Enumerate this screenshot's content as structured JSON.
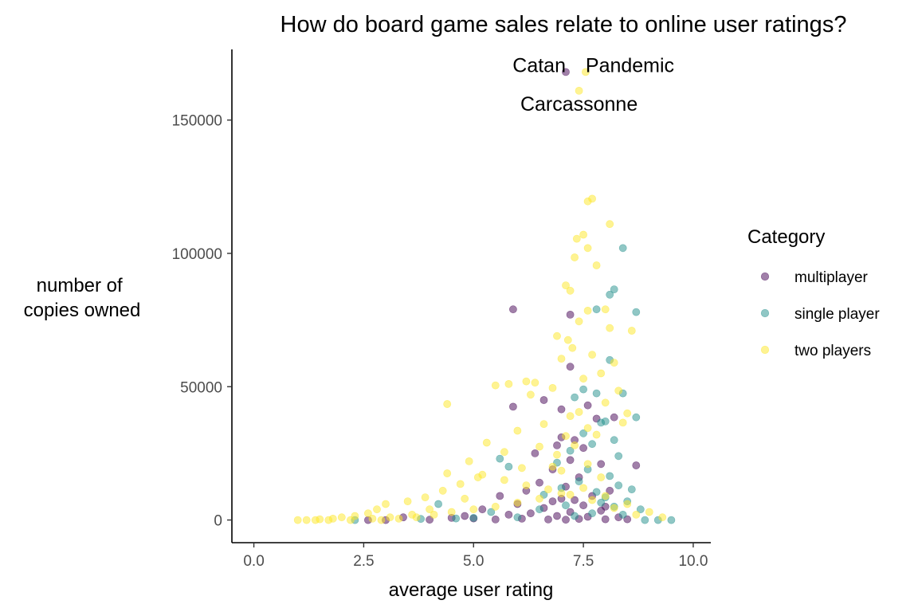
{
  "chart_data": {
    "type": "scatter",
    "title": "How do board game sales relate to online user ratings?",
    "xlabel": "average user rating",
    "ylabel": [
      "number of",
      "copies owned"
    ],
    "xlim": [
      -0.5,
      10.4
    ],
    "ylim": [
      -8500,
      176500
    ],
    "xticks": [
      0,
      2.5,
      5,
      7.5,
      10
    ],
    "xtick_labels": [
      "0.0",
      "2.5",
      "5.0",
      "7.5",
      "10.0"
    ],
    "yticks": [
      0,
      50000,
      100000,
      150000
    ],
    "ytick_labels": [
      "0",
      "50000",
      "100000",
      "150000"
    ],
    "grid": false,
    "legend": {
      "title": "Category",
      "position": "right",
      "entries": [
        {
          "label": "multiplayer",
          "color": "#440154"
        },
        {
          "label": "single player",
          "color": "#21908C"
        },
        {
          "label": "two players",
          "color": "#FDE725"
        }
      ]
    },
    "point_alpha": 0.5,
    "annotations": [
      {
        "text": "Catan",
        "x": 7.1,
        "y": 168000,
        "anchor": "end"
      },
      {
        "text": "Pandemic",
        "x": 7.55,
        "y": 168000,
        "anchor": "start"
      },
      {
        "text": "Carcassonne",
        "x": 7.4,
        "y": 153500,
        "anchor": "middle"
      }
    ],
    "series": [
      {
        "name": "multiplayer",
        "color": "#440154",
        "x": [
          7.1,
          5.9,
          7.2,
          7.2,
          6.6,
          7.0,
          5.9,
          7.6,
          7.8,
          8.2,
          8.7,
          7.0,
          7.3,
          6.4,
          6.9,
          7.5,
          7.2,
          6.8,
          7.9,
          7.4,
          6.5,
          7.1,
          8.1,
          6.2,
          7.7,
          5.6,
          7.0,
          7.3,
          6.8,
          6.0,
          7.5,
          8.0,
          6.6,
          5.2,
          7.9,
          7.2,
          6.3,
          5.8,
          4.8,
          6.9,
          7.6,
          8.3,
          3.4,
          4.5,
          5.0,
          6.1,
          7.4,
          8.0,
          8.5,
          5.5,
          6.7,
          7.1,
          4.0,
          3.0,
          2.6
        ],
        "y": [
          168000,
          79000,
          77000,
          57500,
          45000,
          41500,
          42500,
          43000,
          38000,
          38500,
          20500,
          31000,
          30000,
          25000,
          28000,
          27000,
          22500,
          19000,
          21000,
          16000,
          14000,
          12500,
          11000,
          11000,
          9000,
          9000,
          8000,
          7500,
          7000,
          6000,
          5500,
          5000,
          4500,
          4000,
          3500,
          3000,
          2500,
          2000,
          1500,
          1500,
          1200,
          1000,
          1000,
          800,
          600,
          500,
          400,
          300,
          300,
          200,
          200,
          100,
          100,
          0,
          0
        ]
      },
      {
        "name": "single player",
        "color": "#21908C",
        "x": [
          8.4,
          8.7,
          8.2,
          8.1,
          7.8,
          8.1,
          7.5,
          7.8,
          8.4,
          7.3,
          8.7,
          7.9,
          8.0,
          7.5,
          8.2,
          5.6,
          7.2,
          7.7,
          8.3,
          6.9,
          5.8,
          7.6,
          8.6,
          8.1,
          8.3,
          7.4,
          7.0,
          8.5,
          6.6,
          7.8,
          8.0,
          7.9,
          4.2,
          8.2,
          8.8,
          7.1,
          6.5,
          5.4,
          7.7,
          8.4,
          7.3,
          6.0,
          5.0,
          4.6,
          3.8,
          9.5,
          9.2,
          8.9,
          2.3
        ],
        "y": [
          102000,
          78000,
          86500,
          84500,
          79000,
          60000,
          49000,
          47500,
          47500,
          46000,
          38500,
          36500,
          37000,
          32500,
          30000,
          23000,
          26000,
          28500,
          24000,
          21500,
          20000,
          19000,
          11500,
          16500,
          13000,
          14500,
          12000,
          7000,
          9500,
          10500,
          8500,
          6500,
          6000,
          5000,
          4000,
          5500,
          4000,
          3000,
          2500,
          2000,
          1500,
          1000,
          800,
          600,
          400,
          0,
          0,
          0,
          0
        ]
      },
      {
        "name": "two players",
        "color": "#FDE725",
        "x": [
          7.55,
          7.4,
          7.7,
          7.6,
          7.5,
          8.1,
          7.35,
          7.6,
          7.3,
          7.8,
          7.1,
          7.2,
          7.6,
          8.0,
          8.6,
          7.4,
          8.1,
          6.9,
          7.15,
          7.25,
          7.7,
          7.0,
          8.2,
          6.4,
          6.2,
          5.8,
          5.5,
          4.4,
          6.3,
          6.8,
          7.5,
          7.9,
          8.3,
          8.0,
          7.4,
          7.2,
          6.6,
          6.0,
          5.3,
          4.9,
          4.4,
          5.7,
          6.5,
          7.1,
          7.6,
          8.4,
          8.5,
          7.8,
          7.3,
          6.9,
          6.1,
          5.1,
          4.7,
          4.3,
          3.9,
          3.5,
          3.0,
          2.8,
          2.6,
          2.3,
          2.0,
          1.8,
          1.5,
          1.2,
          1.0,
          1.4,
          1.7,
          2.2,
          2.9,
          3.3,
          3.7,
          4.1,
          4.5,
          5.0,
          5.5,
          6.0,
          6.5,
          7.0,
          7.5,
          8.0,
          8.5,
          9.0,
          9.3,
          8.7,
          8.2,
          7.7,
          7.2,
          6.7,
          6.2,
          5.7,
          5.2,
          4.8,
          4.0,
          3.6,
          3.1,
          2.7,
          6.8,
          7.6,
          7.0,
          7.9
        ],
        "y": [
          168000,
          161000,
          120500,
          119500,
          107000,
          111000,
          105500,
          102000,
          98500,
          95500,
          88000,
          86000,
          78500,
          79000,
          71000,
          74500,
          72000,
          69000,
          67500,
          64500,
          62000,
          60500,
          59000,
          51500,
          52000,
          51000,
          50500,
          43500,
          47000,
          49500,
          53000,
          55000,
          48500,
          44000,
          40500,
          39000,
          36000,
          33500,
          29000,
          22000,
          17500,
          25500,
          27500,
          31500,
          34500,
          36500,
          40000,
          32000,
          28000,
          24500,
          19500,
          16000,
          13500,
          11000,
          8500,
          7000,
          6000,
          4000,
          2500,
          1500,
          1000,
          500,
          300,
          0,
          0,
          0,
          0,
          0,
          0,
          500,
          1000,
          2000,
          3000,
          4000,
          5000,
          6500,
          8000,
          10000,
          12000,
          9000,
          6000,
          3000,
          1000,
          2000,
          4500,
          7500,
          9500,
          11500,
          13000,
          15000,
          17000,
          8000,
          4000,
          2000,
          1000,
          500,
          20000,
          21000,
          18500,
          16000
        ]
      }
    ]
  }
}
